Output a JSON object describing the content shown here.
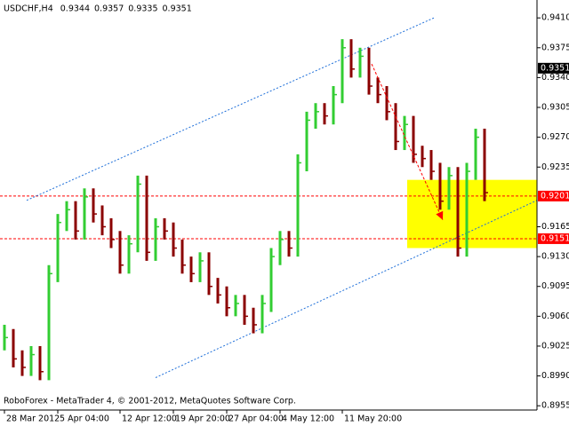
{
  "chart_data": {
    "type": "ohlc",
    "symbol": "USDCHF,H4",
    "header_values": [
      0.9344,
      0.9357,
      0.9335,
      0.9351
    ],
    "footer": "RoboForex - MetaTrader 4, © 2001-2012, MetaQuotes Software Corp.",
    "up_color": "#32cd32",
    "down_color": "#8b0000",
    "high": [
      0.905,
      0.9045,
      0.902,
      0.9025,
      0.9025,
      0.912,
      0.918,
      0.9195,
      0.9195,
      0.921,
      0.921,
      0.919,
      0.9175,
      0.916,
      0.9155,
      0.9225,
      0.9225,
      0.9175,
      0.9175,
      0.917,
      0.915,
      0.913,
      0.9135,
      0.9135,
      0.9105,
      0.9095,
      0.9085,
      0.9085,
      0.907,
      0.9085,
      0.914,
      0.916,
      0.916,
      0.925,
      0.93,
      0.931,
      0.931,
      0.933,
      0.9385,
      0.9385,
      0.9375,
      0.9375,
      0.934,
      0.933,
      0.931,
      0.9295,
      0.9295,
      0.926,
      0.9255,
      0.924,
      0.9235,
      0.9235,
      0.924,
      0.928,
      0.928
    ],
    "low": [
      0.902,
      0.9,
      0.899,
      0.899,
      0.8985,
      0.8985,
      0.91,
      0.916,
      0.915,
      0.915,
      0.917,
      0.9155,
      0.914,
      0.911,
      0.911,
      0.9135,
      0.9125,
      0.9125,
      0.915,
      0.913,
      0.911,
      0.91,
      0.91,
      0.9085,
      0.9075,
      0.906,
      0.906,
      0.905,
      0.904,
      0.904,
      0.9065,
      0.912,
      0.913,
      0.913,
      0.923,
      0.928,
      0.9285,
      0.9285,
      0.931,
      0.934,
      0.934,
      0.932,
      0.931,
      0.929,
      0.9255,
      0.9255,
      0.924,
      0.9235,
      0.922,
      0.9185,
      0.9185,
      0.913,
      0.913,
      0.922,
      0.9195
    ],
    "close": [
      0.9035,
      0.901,
      0.9,
      0.9015,
      0.8995,
      0.911,
      0.917,
      0.9185,
      0.916,
      0.92,
      0.918,
      0.9165,
      0.915,
      0.912,
      0.9145,
      0.9215,
      0.9135,
      0.9165,
      0.916,
      0.914,
      0.912,
      0.911,
      0.9125,
      0.9095,
      0.9085,
      0.907,
      0.9075,
      0.906,
      0.905,
      0.9075,
      0.913,
      0.915,
      0.914,
      0.924,
      0.929,
      0.93,
      0.9295,
      0.932,
      0.9375,
      0.935,
      0.9365,
      0.933,
      0.932,
      0.93,
      0.9265,
      0.9285,
      0.925,
      0.9245,
      0.923,
      0.9195,
      0.9225,
      0.914,
      0.923,
      0.927,
      0.9205
    ],
    "xlim": [
      -0.5,
      59.9
    ],
    "xticks": [
      {
        "value": 0,
        "label": "28 Mar 2012"
      },
      {
        "value": 6,
        "label": "5 Apr 04:00"
      },
      {
        "value": 13,
        "label": "12 Apr 12:00"
      },
      {
        "value": 19,
        "label": "19 Apr 20:00"
      },
      {
        "value": 25,
        "label": "27 Apr 04:00"
      },
      {
        "value": 31,
        "label": "4 May 12:00"
      },
      {
        "value": 38,
        "label": "11 May 20:00"
      }
    ],
    "ylim": [
      0.895,
      0.9431
    ],
    "yticks": [
      {
        "value": 0.941,
        "label": "0.9410"
      },
      0.9375,
      {
        "value": 0.934,
        "label": "0.9340"
      },
      0.9305,
      {
        "value": 0.927,
        "label": "0.9270"
      },
      0.9235,
      0.9165,
      {
        "value": 0.913,
        "label": "0.9130"
      },
      0.9095,
      {
        "value": 0.906,
        "label": "0.9060"
      },
      0.9025,
      {
        "value": 0.899,
        "label": "0.8990"
      },
      0.8955
    ],
    "levels": [
      0.9201,
      0.9151
    ],
    "level_color": "#ff0000",
    "current_price": 0.9351,
    "zone": {
      "x": [
        45.3,
        59.9
      ],
      "y": [
        0.914,
        0.922
      ],
      "color": "#ffff00"
    },
    "channels": [
      {
        "x": [
          2.5,
          48.3
        ],
        "y": [
          0.9196,
          0.941
        ]
      },
      {
        "x": [
          17,
          59.9
        ],
        "y": [
          0.8988,
          0.9196
        ]
      }
    ],
    "channel_color": "#1e6fd9",
    "forecast": {
      "x": [
        41.3,
        49.3
      ],
      "y": [
        0.9356,
        0.9173
      ],
      "color": "#ff0000"
    }
  }
}
